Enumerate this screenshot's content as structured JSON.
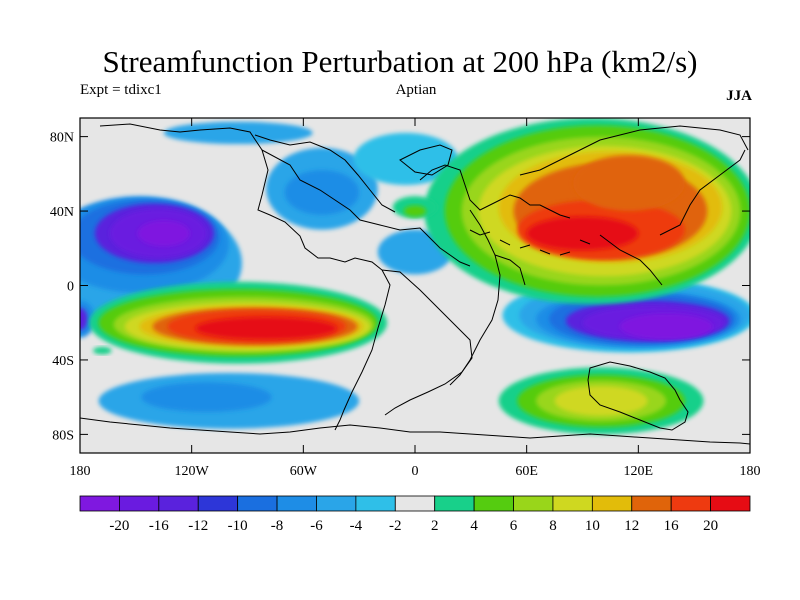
{
  "chart_data": {
    "type": "heatmap",
    "title": "Streamfunction Perturbation at 200 hPa (km2/s)",
    "left_string": "Expt = tdixc1",
    "center_string": "Aptian",
    "right_string": "JJA",
    "x_ticks": [
      "180",
      "120W",
      "60W",
      "0",
      "60E",
      "120E",
      "180"
    ],
    "y_ticks": [
      "80N",
      "40N",
      "0",
      "40S",
      "80S"
    ],
    "xlim": [
      -180,
      180
    ],
    "ylim": [
      -90,
      90
    ],
    "colorbar_labels": [
      "-20",
      "-16",
      "-12",
      "-10",
      "-8",
      "-6",
      "-4",
      "-2",
      "2",
      "4",
      "6",
      "8",
      "10",
      "12",
      "16",
      "20"
    ],
    "colorbar_colors": [
      "#7f18e0",
      "#6a1be0",
      "#5a22dd",
      "#2d36d8",
      "#1a6fe0",
      "#1e8de6",
      "#2aa5e8",
      "#2fbfe8",
      "#e6e6e6",
      "#18d08a",
      "#55cc10",
      "#99d61a",
      "#cfd820",
      "#e2bc0a",
      "#e0640a",
      "#ee3a10",
      "#e60c14"
    ],
    "field_contours": [
      {
        "level": "-4",
        "color": "#2aa5e8",
        "lon": -148,
        "lat": 12,
        "rx": 55,
        "ry": 34
      },
      {
        "level": "-6",
        "color": "#1e8de6",
        "lon": -148,
        "lat": 22,
        "rx": 48,
        "ry": 26
      },
      {
        "level": "-8",
        "color": "#1a6fe0",
        "lon": -145,
        "lat": 26,
        "rx": 40,
        "ry": 20
      },
      {
        "level": "-12",
        "color": "#5a22dd",
        "lon": -140,
        "lat": 28,
        "rx": 32,
        "ry": 16
      },
      {
        "level": "-16",
        "color": "#6a1be0",
        "lon": -138,
        "lat": 28,
        "rx": 26,
        "ry": 13
      },
      {
        "level": "-20",
        "color": "#7f18e0",
        "lon": -135,
        "lat": 28,
        "rx": 14,
        "ry": 7
      },
      {
        "level": "-4",
        "color": "#2aa5e8",
        "lon": -50,
        "lat": 52,
        "rx": 30,
        "ry": 22
      },
      {
        "level": "-6",
        "color": "#1e8de6",
        "lon": -50,
        "lat": 50,
        "rx": 20,
        "ry": 12
      },
      {
        "level": "-4",
        "color": "#2aa5e8",
        "lon": 0,
        "lat": 18,
        "rx": 20,
        "ry": 12
      },
      {
        "level": "-4",
        "color": "#2aa5e8",
        "lon": -100,
        "lat": -62,
        "rx": 70,
        "ry": 15
      },
      {
        "level": "-6",
        "color": "#1e8de6",
        "lon": -112,
        "lat": -60,
        "rx": 35,
        "ry": 8
      },
      {
        "level": "-6",
        "color": "#1e8de6",
        "lon": -180,
        "lat": -18,
        "rx": 8,
        "ry": 10
      },
      {
        "level": "-12",
        "color": "#5a22dd",
        "lon": -180,
        "lat": -18,
        "rx": 4,
        "ry": 6
      },
      {
        "level": "-2",
        "color": "#2fbfe8",
        "lon": 115,
        "lat": -16,
        "rx": 68,
        "ry": 20
      },
      {
        "level": "-4",
        "color": "#2aa5e8",
        "lon": 118,
        "lat": -16,
        "rx": 62,
        "ry": 18
      },
      {
        "level": "-6",
        "color": "#1e8de6",
        "lon": 120,
        "lat": -18,
        "rx": 55,
        "ry": 15
      },
      {
        "level": "-8",
        "color": "#1a6fe0",
        "lon": 122,
        "lat": -18,
        "rx": 50,
        "ry": 14
      },
      {
        "level": "-12",
        "color": "#5a22dd",
        "lon": 125,
        "lat": -19,
        "rx": 44,
        "ry": 11
      },
      {
        "level": "-16",
        "color": "#6a1be0",
        "lon": 128,
        "lat": -20,
        "rx": 38,
        "ry": 9
      },
      {
        "level": "-20",
        "color": "#7f18e0",
        "lon": 135,
        "lat": -22,
        "rx": 25,
        "ry": 7
      },
      {
        "level": "-2",
        "color": "#2fbfe8",
        "lon": -5,
        "lat": 68,
        "rx": 28,
        "ry": 14
      },
      {
        "level": "-4",
        "color": "#2aa5e8",
        "lon": -95,
        "lat": 82,
        "rx": 40,
        "ry": 6
      },
      {
        "level": "2",
        "color": "#18d08a",
        "lon": -95,
        "lat": -20,
        "rx": 80,
        "ry": 22
      },
      {
        "level": "4",
        "color": "#55cc10",
        "lon": -95,
        "lat": -20,
        "rx": 75,
        "ry": 18
      },
      {
        "level": "6",
        "color": "#99d61a",
        "lon": -92,
        "lat": -21,
        "rx": 70,
        "ry": 15
      },
      {
        "level": "8",
        "color": "#cfd820",
        "lon": -90,
        "lat": -22,
        "rx": 66,
        "ry": 13
      },
      {
        "level": "10",
        "color": "#e2bc0a",
        "lon": -88,
        "lat": -22,
        "rx": 60,
        "ry": 11
      },
      {
        "level": "12",
        "color": "#e0640a",
        "lon": -86,
        "lat": -22,
        "rx": 55,
        "ry": 10
      },
      {
        "level": "16",
        "color": "#ee3a10",
        "lon": -85,
        "lat": -22,
        "rx": 48,
        "ry": 9
      },
      {
        "level": "20",
        "color": "#e60c14",
        "lon": -80,
        "lat": -23,
        "rx": 38,
        "ry": 6
      },
      {
        "level": "2",
        "color": "#18d08a",
        "lon": -168,
        "lat": -35,
        "rx": 5,
        "ry": 2
      },
      {
        "level": "2",
        "color": "#18d08a",
        "lon": 95,
        "lat": 40,
        "rx": 90,
        "ry": 50
      },
      {
        "level": "4",
        "color": "#55cc10",
        "lon": 98,
        "lat": 40,
        "rx": 82,
        "ry": 46
      },
      {
        "level": "6",
        "color": "#99d61a",
        "lon": 100,
        "lat": 40,
        "rx": 75,
        "ry": 40
      },
      {
        "level": "8",
        "color": "#cfd820",
        "lon": 102,
        "lat": 40,
        "rx": 68,
        "ry": 35
      },
      {
        "level": "10",
        "color": "#e2bc0a",
        "lon": 105,
        "lat": 42,
        "rx": 60,
        "ry": 30
      },
      {
        "level": "12",
        "color": "#e0640a",
        "lon": 105,
        "lat": 40,
        "rx": 52,
        "ry": 26
      },
      {
        "level": "16",
        "color": "#ee3a10",
        "lon": 100,
        "lat": 30,
        "rx": 45,
        "ry": 16
      },
      {
        "level": "20",
        "color": "#e60c14",
        "lon": 90,
        "lat": 28,
        "rx": 30,
        "ry": 9
      },
      {
        "level": "12",
        "color": "#e0640a",
        "lon": 115,
        "lat": 55,
        "rx": 30,
        "ry": 15
      },
      {
        "level": "2",
        "color": "#18d08a",
        "lon": 100,
        "lat": -62,
        "rx": 55,
        "ry": 18
      },
      {
        "level": "4",
        "color": "#55cc10",
        "lon": 100,
        "lat": -62,
        "rx": 45,
        "ry": 14
      },
      {
        "level": "6",
        "color": "#99d61a",
        "lon": 100,
        "lat": -62,
        "rx": 35,
        "ry": 11
      },
      {
        "level": "8",
        "color": "#cfd820",
        "lon": 100,
        "lat": -62,
        "rx": 25,
        "ry": 8
      },
      {
        "level": "2",
        "color": "#18d08a",
        "lon": 0,
        "lat": 42,
        "rx": 12,
        "ry": 6
      },
      {
        "level": "4",
        "color": "#55cc10",
        "lon": 0,
        "lat": 40,
        "rx": 6,
        "ry": 3
      }
    ]
  }
}
